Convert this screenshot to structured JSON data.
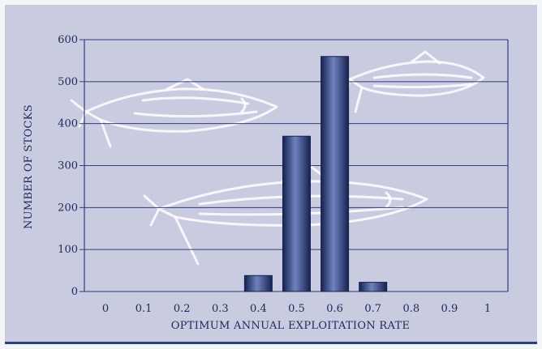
{
  "chart_data": {
    "type": "bar",
    "title": "",
    "xlabel": "OPTIMUM ANNUAL EXPLOITATION RATE",
    "ylabel": "NUMBER OF STOCKS",
    "categories": [
      "0",
      "0.1",
      "0.2",
      "0.3",
      "0.4",
      "0.5",
      "0.6",
      "0.7",
      "0.8",
      "0.9",
      "1"
    ],
    "values": [
      0,
      0,
      0,
      0,
      38,
      370,
      560,
      22,
      0,
      0,
      0
    ],
    "ylim": [
      0,
      600
    ],
    "yticks": [
      "0",
      "100",
      "200",
      "300",
      "400",
      "500",
      "600"
    ],
    "grid": true,
    "colors": {
      "background": "#c9cbe1",
      "bar_dark": "#16224f",
      "bar_light": "#6f82bf",
      "grid": "#2f3d78",
      "text": "#1d2a5a",
      "decoration": "#ffffff"
    },
    "decoration_icons": [
      "fish-icon",
      "fish-icon",
      "fish-icon"
    ]
  }
}
